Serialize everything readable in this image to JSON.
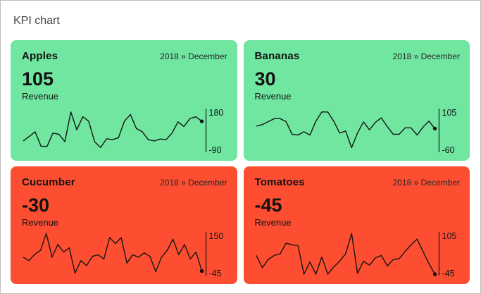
{
  "page": {
    "title": "KPI chart"
  },
  "colors": {
    "positive_card": "#70E6A1",
    "negative_card": "#FD4E31",
    "line": "#151515",
    "axis": "rgba(0,0,0,0.55)",
    "dot": "#111111",
    "page_border": "#bdbdbd",
    "background": "#ffffff"
  },
  "cards": [
    {
      "name": "Apples",
      "period": "2018 » December",
      "value": "105",
      "metric": "Revenue",
      "sentiment": "positive"
    },
    {
      "name": "Bananas",
      "period": "2018 » December",
      "value": "30",
      "metric": "Revenue",
      "sentiment": "positive"
    },
    {
      "name": "Cucumber",
      "period": "2018 » December",
      "value": "-30",
      "metric": "Revenue",
      "sentiment": "negative"
    },
    {
      "name": "Tomatoes",
      "period": "2018 » December",
      "value": "-45",
      "metric": "Revenue",
      "sentiment": "negative"
    }
  ],
  "chart_data": [
    {
      "type": "line",
      "title": "Apples",
      "period": "2018 » December",
      "metric": "Revenue",
      "current_value": 105,
      "axis_max": 180,
      "axis_min": -90,
      "legend": "none",
      "grid": false,
      "values": [
        -25,
        5,
        36,
        -60,
        -60,
        28,
        19,
        -29,
        167,
        49,
        136,
        106,
        -30,
        -68,
        -10,
        -16,
        -3,
        106,
        150,
        58,
        36,
        -16,
        -25,
        -12,
        -16,
        28,
        102,
        71,
        123,
        136,
        105
      ]
    },
    {
      "type": "line",
      "title": "Bananas",
      "period": "2018 » December",
      "metric": "Revenue",
      "current_value": 30,
      "axis_max": 105,
      "axis_min": -60,
      "legend": "none",
      "grid": false,
      "values": [
        40,
        46,
        58,
        70,
        70,
        58,
        7,
        4,
        17,
        4,
        60,
        97,
        97,
        60,
        12,
        20,
        -47,
        12,
        57,
        25,
        55,
        73,
        38,
        7,
        7,
        33,
        33,
        4,
        36,
        60,
        30
      ]
    },
    {
      "type": "line",
      "title": "Cucumber",
      "period": "2018 » December",
      "metric": "Revenue",
      "current_value": -30,
      "axis_max": 150,
      "axis_min": -45,
      "legend": "none",
      "grid": false,
      "values": [
        36,
        20,
        50,
        69,
        150,
        36,
        97,
        61,
        81,
        -40,
        20,
        -4,
        40,
        48,
        28,
        130,
        101,
        130,
        8,
        48,
        36,
        57,
        40,
        -33,
        36,
        69,
        122,
        48,
        97,
        28,
        61,
        -30
      ]
    },
    {
      "type": "line",
      "title": "Tomatoes",
      "period": "2018 » December",
      "metric": "Revenue",
      "current_value": -45,
      "axis_max": 105,
      "axis_min": -45,
      "legend": "none",
      "grid": false,
      "values": [
        24,
        -21,
        9,
        24,
        30,
        69,
        63,
        60,
        -45,
        0,
        -45,
        18,
        -45,
        -18,
        3,
        30,
        105,
        -42,
        3,
        -12,
        15,
        24,
        -15,
        9,
        12,
        39,
        63,
        84,
        39,
        -6,
        -45
      ]
    }
  ]
}
